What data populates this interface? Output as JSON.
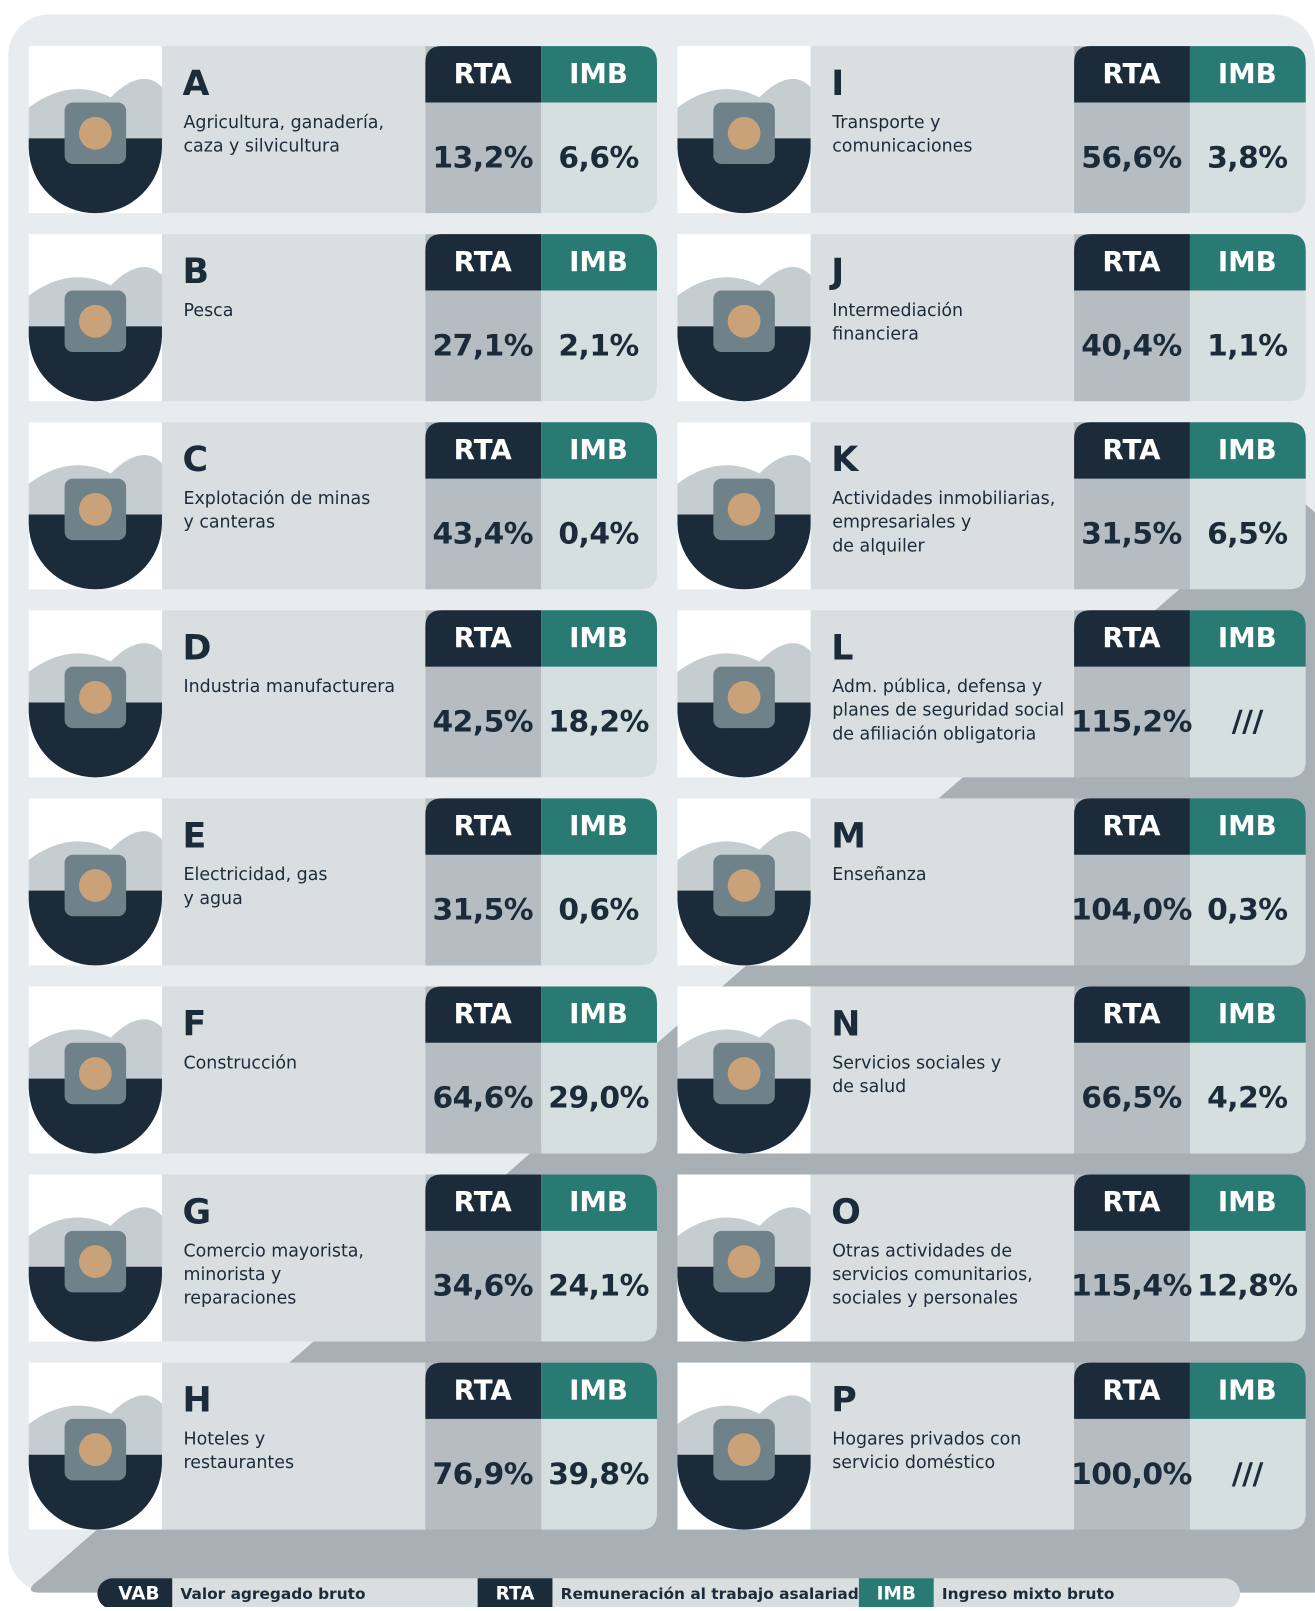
{
  "headers": {
    "rta": "RTA",
    "imb": "IMB"
  },
  "sectors": [
    {
      "letter": "A",
      "name": [
        "Agricultura, ganadería,",
        "caza y silvicultura"
      ],
      "rta": "13,2%",
      "imb": "6,6%"
    },
    {
      "letter": "B",
      "name": [
        "Pesca"
      ],
      "rta": "27,1%",
      "imb": "2,1%"
    },
    {
      "letter": "C",
      "name": [
        "Explotación de minas",
        "y canteras"
      ],
      "rta": "43,4%",
      "imb": "0,4%"
    },
    {
      "letter": "D",
      "name": [
        "Industria manufacturera"
      ],
      "rta": "42,5%",
      "imb": "18,2%"
    },
    {
      "letter": "E",
      "name": [
        "Electricidad, gas",
        "y agua"
      ],
      "rta": "31,5%",
      "imb": "0,6%"
    },
    {
      "letter": "F",
      "name": [
        "Construcción"
      ],
      "rta": "64,6%",
      "imb": "29,0%"
    },
    {
      "letter": "G",
      "name": [
        "Comercio mayorista,",
        "minorista y",
        "reparaciones"
      ],
      "rta": "34,6%",
      "imb": "24,1%"
    },
    {
      "letter": "H",
      "name": [
        "Hoteles y",
        "restaurantes"
      ],
      "rta": "76,9%",
      "imb": "39,8%"
    },
    {
      "letter": "I",
      "name": [
        "Transporte y",
        "comunicaciones"
      ],
      "rta": "56,6%",
      "imb": "3,8%"
    },
    {
      "letter": "J",
      "name": [
        "Intermediación",
        "financiera"
      ],
      "rta": "40,4%",
      "imb": "1,1%"
    },
    {
      "letter": "K",
      "name": [
        "Actividades inmobiliarias,",
        "empresariales y",
        "de alquiler"
      ],
      "rta": "31,5%",
      "imb": "6,5%"
    },
    {
      "letter": "L",
      "name": [
        "Adm. pública, defensa y",
        "planes de seguridad social",
        "de afiliación obligatoria"
      ],
      "rta": "115,2%",
      "imb": "///"
    },
    {
      "letter": "M",
      "name": [
        "Enseñanza"
      ],
      "rta": "104,0%",
      "imb": "0,3%"
    },
    {
      "letter": "N",
      "name": [
        "Servicios sociales y",
        "de salud"
      ],
      "rta": "66,5%",
      "imb": "4,2%"
    },
    {
      "letter": "O",
      "name": [
        "Otras actividades de",
        "servicios comunitarios,",
        "sociales y personales"
      ],
      "rta": "115,4%",
      "imb": "12,8%"
    },
    {
      "letter": "P",
      "name": [
        "Hogares privados con",
        "servicio doméstico"
      ],
      "rta": "100,0%",
      "imb": "///"
    }
  ],
  "legend": [
    {
      "key": "VAB",
      "text": "Valor agregado bruto"
    },
    {
      "key": "RTA",
      "text": "Remuneración al trabajo asalariado"
    },
    {
      "key": "IMB",
      "text": "Ingreso mixto bruto"
    }
  ]
}
